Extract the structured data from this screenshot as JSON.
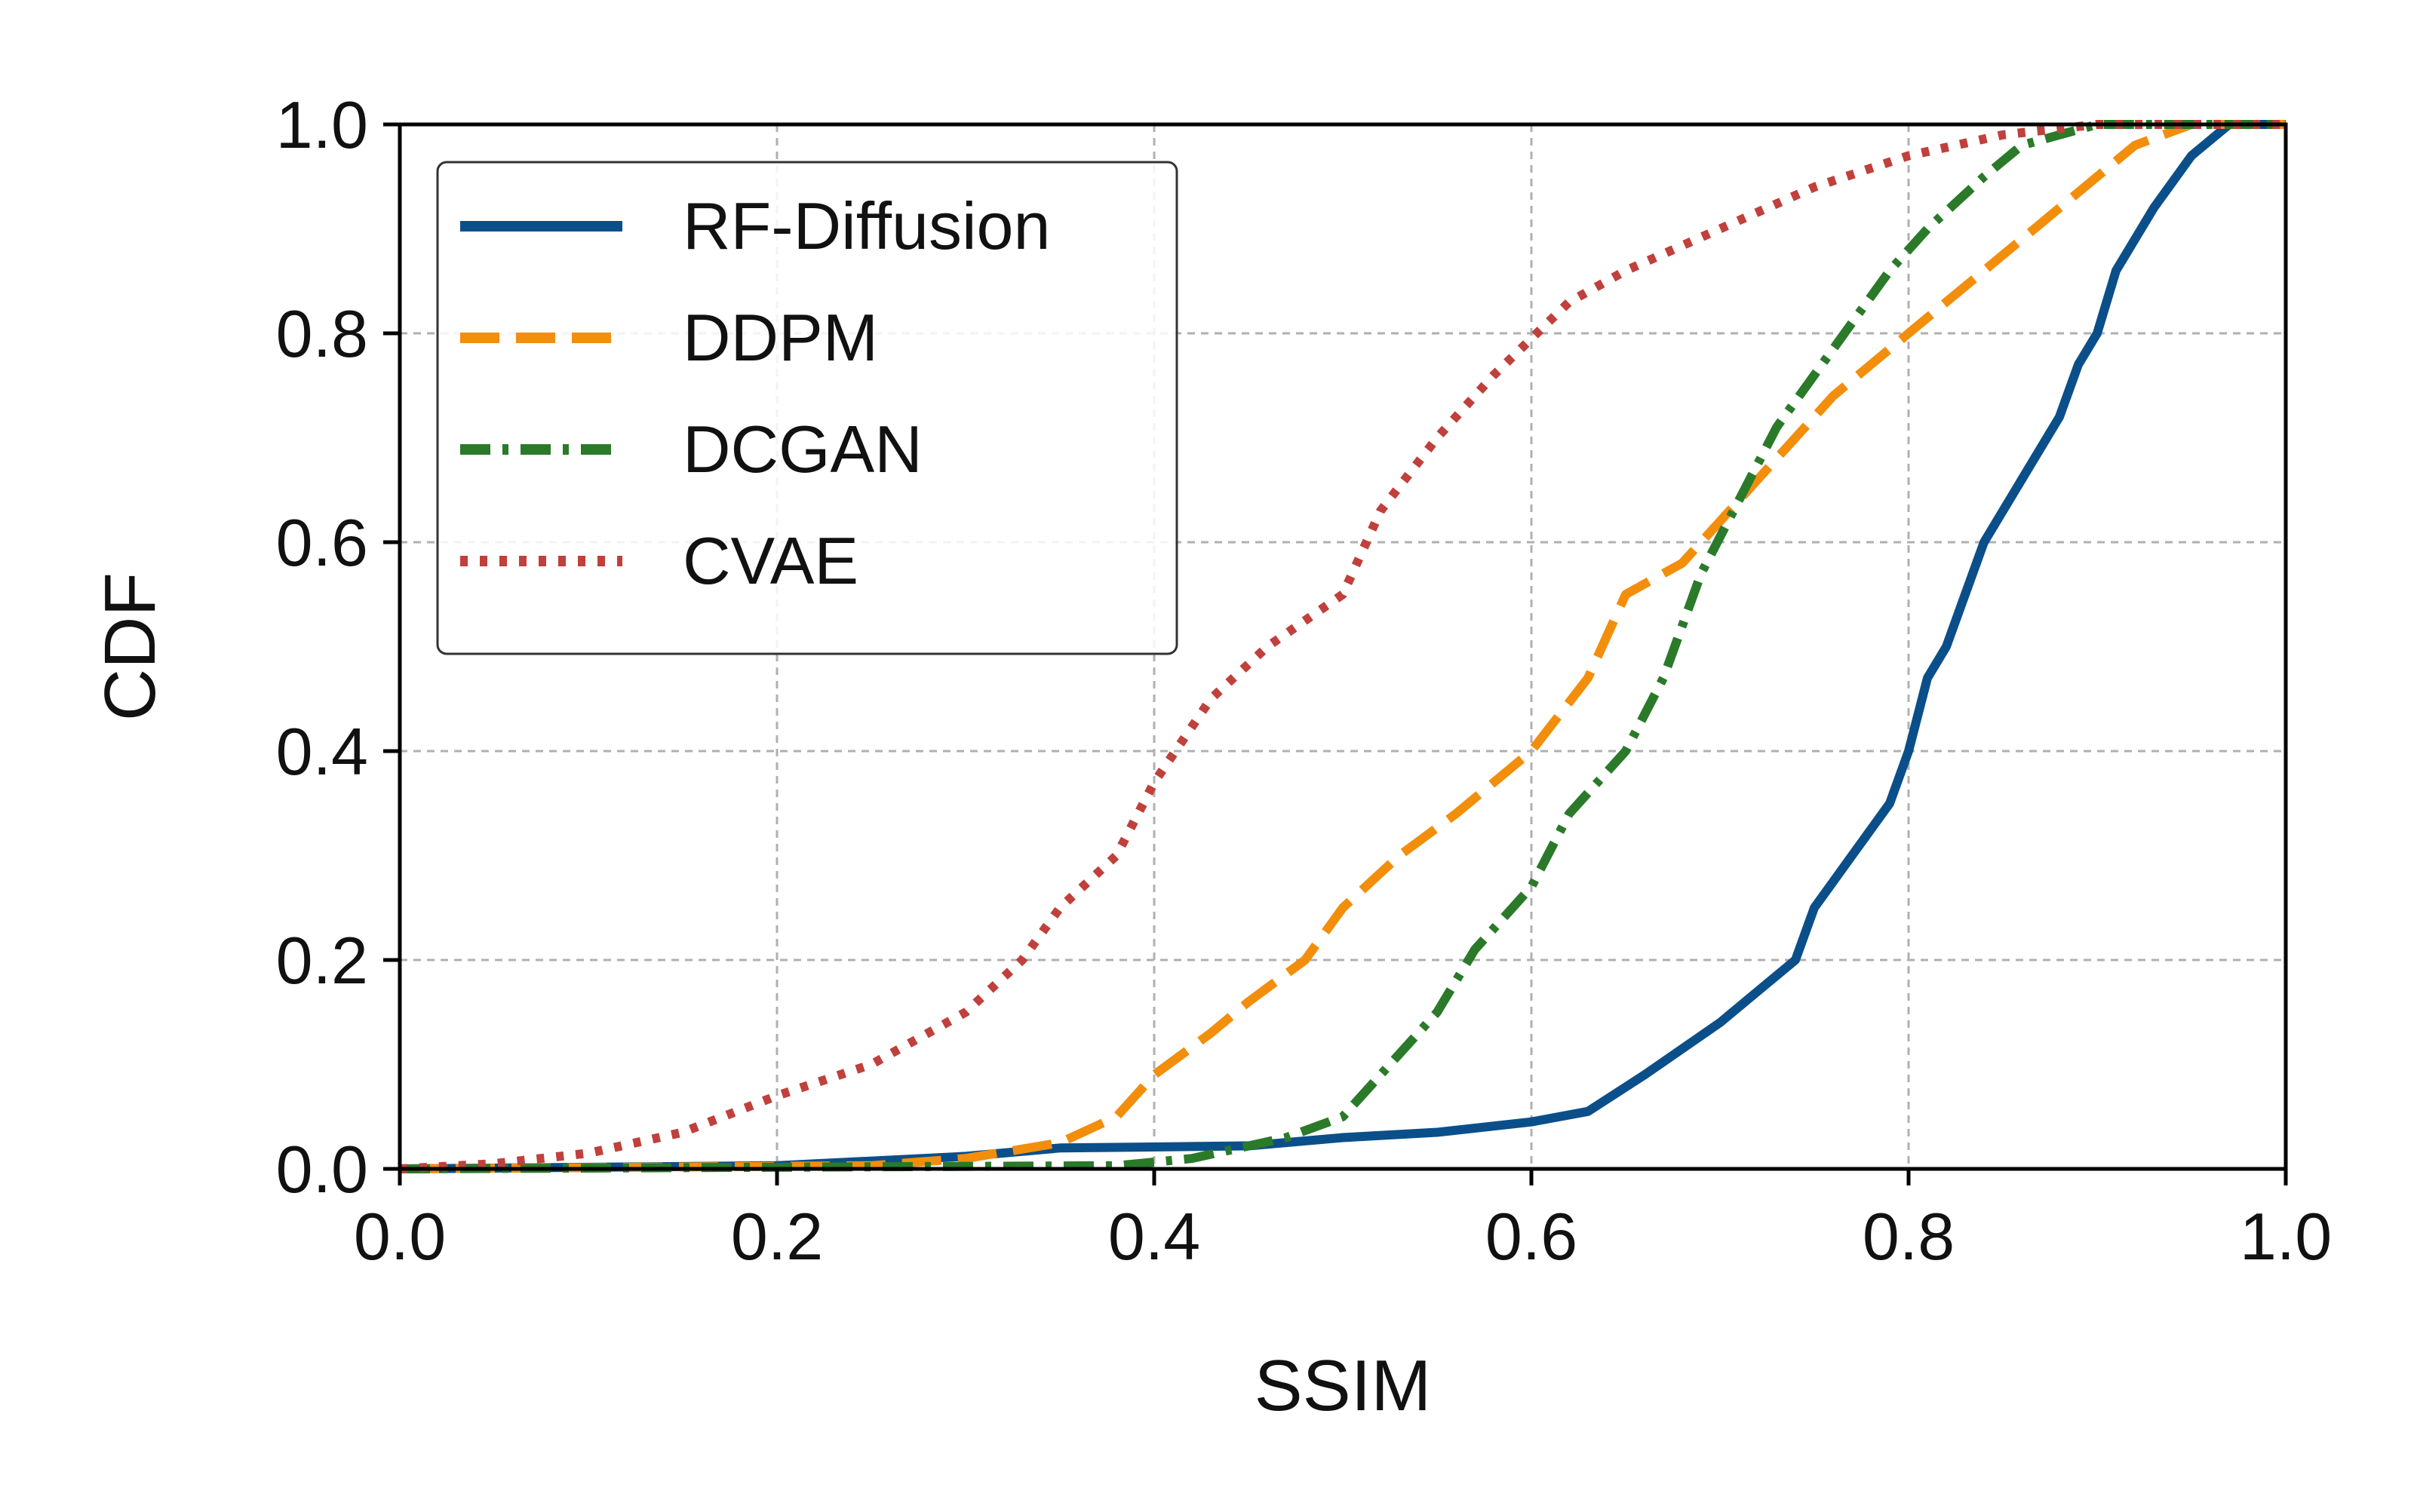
{
  "chart_data": {
    "type": "line",
    "title": "",
    "xlabel": "SSIM",
    "ylabel": "CDF",
    "xlim": [
      0.0,
      1.0
    ],
    "ylim": [
      0.0,
      1.0
    ],
    "grid": true,
    "legend_position": "top-left",
    "x_ticks": [
      0.0,
      0.2,
      0.4,
      0.6,
      0.8,
      1.0
    ],
    "x_tick_labels": [
      "0.0",
      "0.2",
      "0.4",
      "0.6",
      "0.8",
      "1.0"
    ],
    "y_ticks": [
      0.0,
      0.2,
      0.4,
      0.6,
      0.8,
      1.0
    ],
    "y_tick_labels": [
      "0.0",
      "0.2",
      "0.4",
      "0.6",
      "0.8",
      "1.0"
    ],
    "series": [
      {
        "name": "RF-Diffusion",
        "color": "#0b4f8a",
        "style": "solid",
        "points": [
          [
            0.0,
            0.0
          ],
          [
            0.2,
            0.003
          ],
          [
            0.3,
            0.012
          ],
          [
            0.35,
            0.02
          ],
          [
            0.45,
            0.022
          ],
          [
            0.5,
            0.03
          ],
          [
            0.55,
            0.035
          ],
          [
            0.6,
            0.045
          ],
          [
            0.63,
            0.055
          ],
          [
            0.66,
            0.09
          ],
          [
            0.7,
            0.14
          ],
          [
            0.72,
            0.17
          ],
          [
            0.74,
            0.2
          ],
          [
            0.75,
            0.25
          ],
          [
            0.77,
            0.3
          ],
          [
            0.79,
            0.35
          ],
          [
            0.8,
            0.4
          ],
          [
            0.81,
            0.47
          ],
          [
            0.82,
            0.5
          ],
          [
            0.83,
            0.55
          ],
          [
            0.84,
            0.6
          ],
          [
            0.86,
            0.66
          ],
          [
            0.88,
            0.72
          ],
          [
            0.89,
            0.77
          ],
          [
            0.9,
            0.8
          ],
          [
            0.91,
            0.86
          ],
          [
            0.93,
            0.92
          ],
          [
            0.95,
            0.97
          ],
          [
            0.97,
            1.0
          ],
          [
            1.0,
            1.0
          ]
        ]
      },
      {
        "name": "DDPM",
        "color": "#f28e0b",
        "style": "dashed",
        "points": [
          [
            0.0,
            0.0
          ],
          [
            0.25,
            0.003
          ],
          [
            0.3,
            0.01
          ],
          [
            0.35,
            0.025
          ],
          [
            0.38,
            0.05
          ],
          [
            0.4,
            0.09
          ],
          [
            0.43,
            0.13
          ],
          [
            0.45,
            0.16
          ],
          [
            0.48,
            0.2
          ],
          [
            0.5,
            0.25
          ],
          [
            0.53,
            0.3
          ],
          [
            0.56,
            0.34
          ],
          [
            0.6,
            0.4
          ],
          [
            0.63,
            0.47
          ],
          [
            0.65,
            0.55
          ],
          [
            0.68,
            0.58
          ],
          [
            0.7,
            0.62
          ],
          [
            0.73,
            0.68
          ],
          [
            0.76,
            0.74
          ],
          [
            0.8,
            0.8
          ],
          [
            0.84,
            0.86
          ],
          [
            0.88,
            0.92
          ],
          [
            0.92,
            0.98
          ],
          [
            0.95,
            1.0
          ],
          [
            1.0,
            1.0
          ]
        ]
      },
      {
        "name": "DCGAN",
        "color": "#2a7a2a",
        "style": "dashdot",
        "points": [
          [
            0.0,
            0.0
          ],
          [
            0.38,
            0.003
          ],
          [
            0.42,
            0.01
          ],
          [
            0.47,
            0.03
          ],
          [
            0.5,
            0.05
          ],
          [
            0.52,
            0.09
          ],
          [
            0.55,
            0.15
          ],
          [
            0.57,
            0.21
          ],
          [
            0.6,
            0.27
          ],
          [
            0.62,
            0.34
          ],
          [
            0.65,
            0.4
          ],
          [
            0.67,
            0.47
          ],
          [
            0.69,
            0.57
          ],
          [
            0.71,
            0.64
          ],
          [
            0.73,
            0.71
          ],
          [
            0.75,
            0.76
          ],
          [
            0.77,
            0.81
          ],
          [
            0.79,
            0.86
          ],
          [
            0.81,
            0.9
          ],
          [
            0.84,
            0.95
          ],
          [
            0.86,
            0.98
          ],
          [
            0.9,
            1.0
          ],
          [
            1.0,
            1.0
          ]
        ]
      },
      {
        "name": "CVAE",
        "color": "#c0403c",
        "style": "dotted",
        "points": [
          [
            0.0,
            0.0
          ],
          [
            0.05,
            0.005
          ],
          [
            0.1,
            0.015
          ],
          [
            0.15,
            0.035
          ],
          [
            0.2,
            0.07
          ],
          [
            0.25,
            0.1
          ],
          [
            0.3,
            0.15
          ],
          [
            0.33,
            0.2
          ],
          [
            0.35,
            0.25
          ],
          [
            0.38,
            0.3
          ],
          [
            0.4,
            0.37
          ],
          [
            0.43,
            0.45
          ],
          [
            0.46,
            0.5
          ],
          [
            0.5,
            0.55
          ],
          [
            0.52,
            0.63
          ],
          [
            0.55,
            0.7
          ],
          [
            0.58,
            0.76
          ],
          [
            0.62,
            0.83
          ],
          [
            0.65,
            0.86
          ],
          [
            0.7,
            0.9
          ],
          [
            0.75,
            0.94
          ],
          [
            0.8,
            0.97
          ],
          [
            0.85,
            0.99
          ],
          [
            0.9,
            1.0
          ],
          [
            1.0,
            1.0
          ]
        ]
      }
    ]
  }
}
